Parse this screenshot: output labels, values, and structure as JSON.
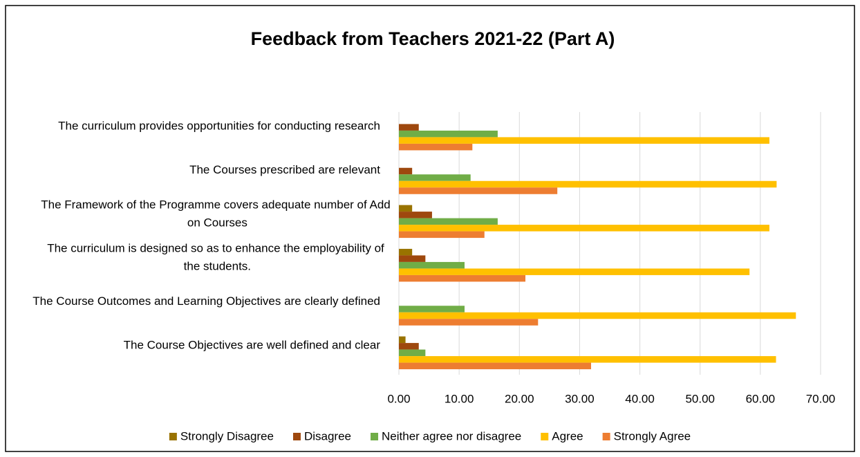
{
  "chart_data": {
    "type": "barh",
    "title": "Feedback from Teachers 2021-22 (Part A)",
    "categories": [
      "The curriculum provides opportunities for conducting research",
      "The Courses prescribed are relevant",
      "The Framework of the Programme covers adequate number of Add on Courses",
      "The curriculum is designed so as to enhance the employability of the students.",
      "The Course Outcomes and Learning Objectives are clearly defined",
      "The Course Objectives are well defined and clear"
    ],
    "series": [
      {
        "name": "Strongly Disagree",
        "color": "#997300",
        "values": [
          0,
          0,
          2.2,
          2.2,
          0,
          1.1
        ]
      },
      {
        "name": "Disagree",
        "color": "#9e480e",
        "values": [
          3.3,
          2.2,
          5.5,
          4.4,
          0,
          3.3
        ]
      },
      {
        "name": "Neither agree nor disagree",
        "color": "#70ad47",
        "values": [
          16.4,
          11.9,
          16.4,
          10.9,
          10.9,
          4.4
        ]
      },
      {
        "name": "Agree",
        "color": "#ffc000",
        "values": [
          61.5,
          62.7,
          61.5,
          58.2,
          65.9,
          62.6
        ]
      },
      {
        "name": "Strongly Agree",
        "color": "#ed7d31",
        "values": [
          12.2,
          26.3,
          14.2,
          21.0,
          23.1,
          31.9
        ]
      }
    ],
    "xlim": [
      0,
      70
    ],
    "xticks": [
      {
        "value": 0,
        "label": "0.00"
      },
      {
        "value": 10,
        "label": "10.00"
      },
      {
        "value": 20,
        "label": "20.00"
      },
      {
        "value": 30,
        "label": "30.00"
      },
      {
        "value": 40,
        "label": "40.00"
      },
      {
        "value": 50,
        "label": "50.00"
      },
      {
        "value": 60,
        "label": "60.00"
      },
      {
        "value": 70,
        "label": "70.00"
      }
    ],
    "grid": true,
    "legend": "bottom"
  }
}
